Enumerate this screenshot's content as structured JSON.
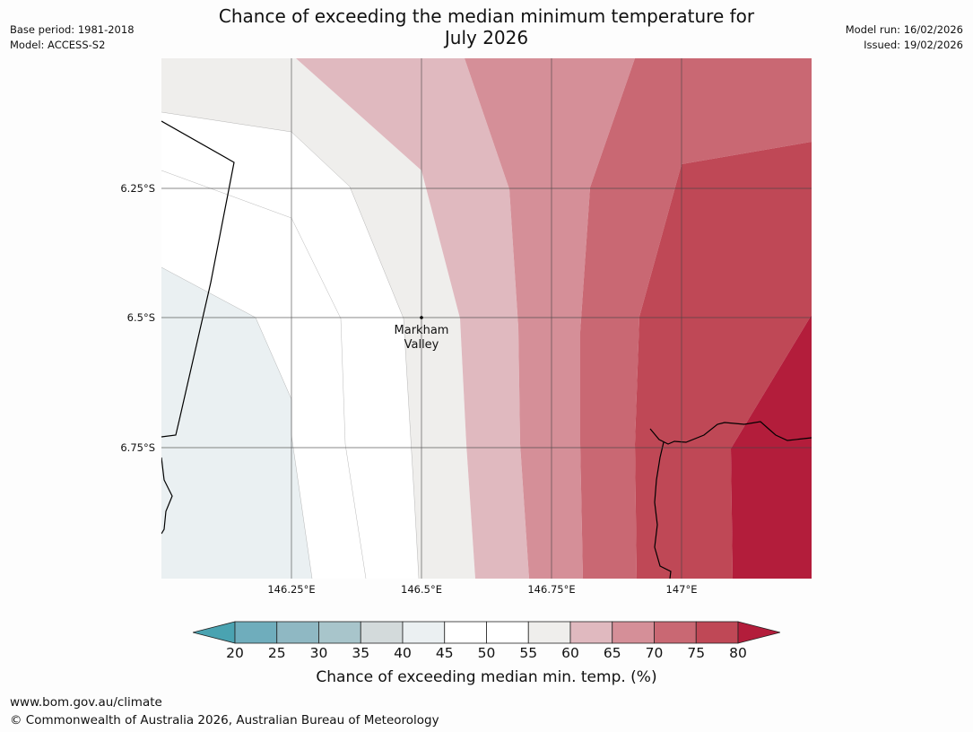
{
  "title_line1": "Chance of exceeding the median minimum temperature for",
  "title_line2": "July 2026",
  "meta_left": [
    "Base period: 1981-2018",
    "Model: ACCESS-S2"
  ],
  "meta_right": [
    "Model run: 16/02/2026",
    "Issued: 19/02/2026"
  ],
  "lat_labels": [
    "6.25°S",
    "6.5°S",
    "6.75°S"
  ],
  "lon_labels": [
    "146.25°E",
    "146.5°E",
    "146.75°E",
    "147°E"
  ],
  "place": {
    "name_line1": "Markham",
    "name_line2": "Valley"
  },
  "colorbar": {
    "ticks": [
      "20",
      "25",
      "30",
      "35",
      "40",
      "45",
      "50",
      "55",
      "60",
      "65",
      "70",
      "75",
      "80"
    ],
    "colors": [
      "#4aa3b1",
      "#6fadbc",
      "#8fb8c3",
      "#a8c5cb",
      "#d3dadb",
      "#ebf0f2",
      "#ffffff",
      "#ffffff",
      "#efeeec",
      "#e0b9bf",
      "#d58f98",
      "#c96873",
      "#bf4856",
      "#b31d3b"
    ],
    "label": "Chance of exceeding median min. temp. (%)"
  },
  "footer": {
    "url": "www.bom.gov.au/climate",
    "copyright": "© Commonwealth of Australia 2026, Australian Bureau of Meteorology"
  }
}
